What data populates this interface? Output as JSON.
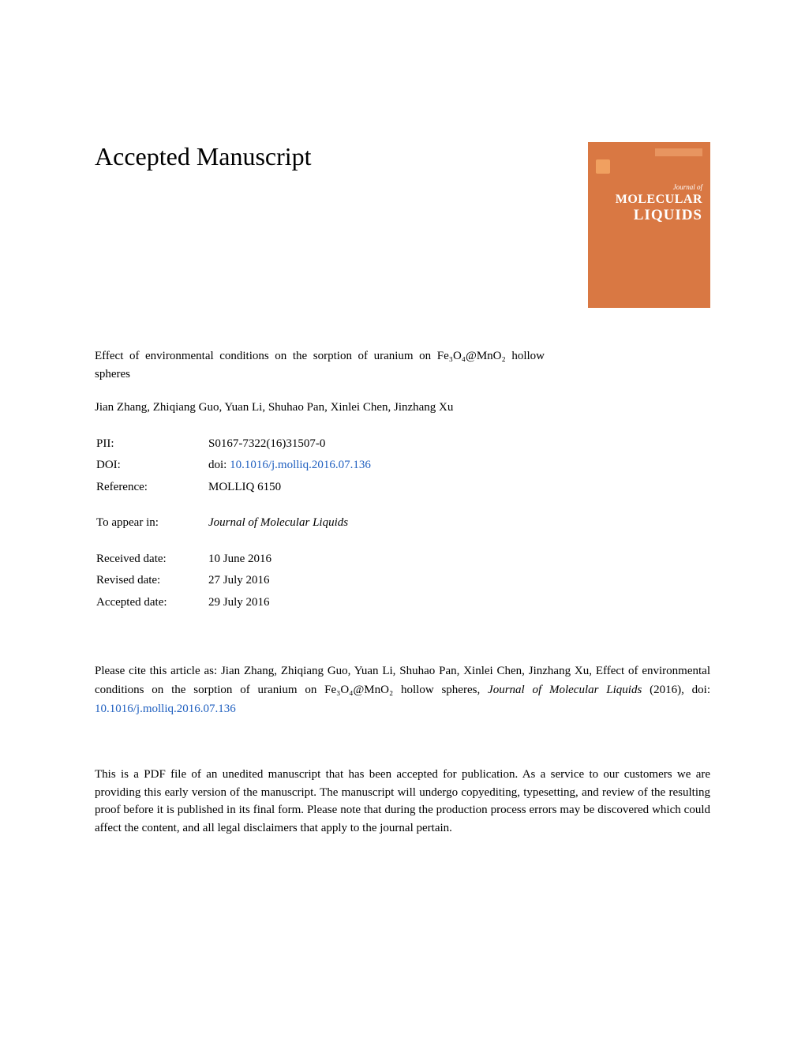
{
  "heading": "Accepted Manuscript",
  "journal_cover": {
    "background_color": "#d97843",
    "label": "Journal of",
    "title_line1": "MOLECULAR",
    "title_line2": "LIQUIDS"
  },
  "article": {
    "title_html": "Effect of environmental conditions on the sorption of uranium on Fe₃O₄@MnO₂ hollow spheres",
    "authors": "Jian Zhang, Zhiqiang Guo, Yuan Li, Shuhao Pan, Xinlei Chen, Jinzhang Xu"
  },
  "meta": {
    "pii_label": "PII:",
    "pii_value": "S0167-7322(16)31507-0",
    "doi_label": "DOI:",
    "doi_prefix": "doi: ",
    "doi_link": "10.1016/j.molliq.2016.07.136",
    "reference_label": "Reference:",
    "reference_value": "MOLLIQ 6150",
    "appear_label": "To appear in:",
    "appear_value": "Journal of Molecular Liquids",
    "received_label": "Received date:",
    "received_value": "10 June 2016",
    "revised_label": "Revised date:",
    "revised_value": "27 July 2016",
    "accepted_label": "Accepted date:",
    "accepted_value": "29 July 2016"
  },
  "citation": {
    "text_before": "Please cite this article as: Jian Zhang, Zhiqiang Guo, Yuan Li, Shuhao Pan, Xinlei Chen, Jinzhang Xu, Effect of environmental conditions on the sorption of uranium on Fe₃O₄@MnO₂ hollow spheres, ",
    "journal_italic": "Journal of Molecular Liquids",
    "year": " (2016), doi: ",
    "doi_link": "10.1016/j.molliq.2016.07.136"
  },
  "disclaimer": "This is a PDF file of an unedited manuscript that has been accepted for publication. As a service to our customers we are providing this early version of the manuscript. The manuscript will undergo copyediting, typesetting, and review of the resulting proof before it is published in its final form. Please note that during the production process errors may be discovered which could affect the content, and all legal disclaimers that apply to the journal pertain.",
  "colors": {
    "link": "#2060c0",
    "text": "#000000",
    "background": "#ffffff"
  },
  "typography": {
    "heading_fontsize": 32,
    "body_fontsize": 15,
    "font_family": "Georgia, serif"
  }
}
